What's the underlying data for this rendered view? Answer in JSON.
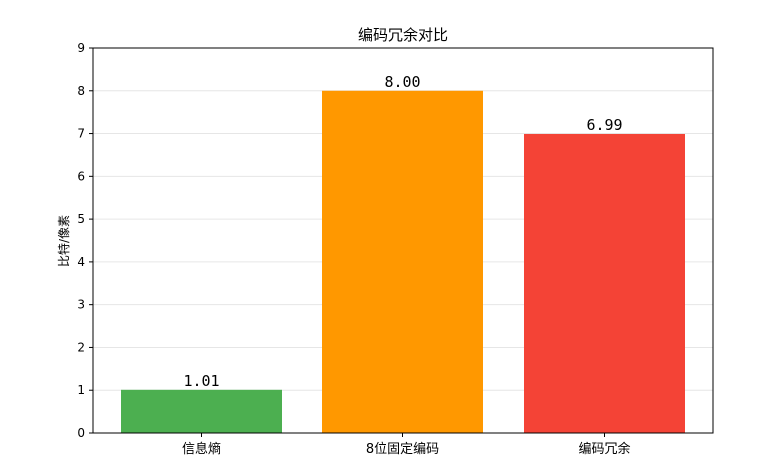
{
  "chart_data": {
    "type": "bar",
    "title": "编码冗余对比",
    "xlabel": "",
    "ylabel": "比特/像素",
    "categories": [
      "信息熵",
      "8位固定编码",
      "编码冗余"
    ],
    "values": [
      1.01,
      8.0,
      6.99
    ],
    "data_labels": [
      "1.01",
      "8.00",
      "6.99"
    ],
    "colors": [
      "#4caf50",
      "#ff9800",
      "#f44336"
    ],
    "ylim": [
      0,
      9
    ],
    "yticks": [
      0,
      1,
      2,
      3,
      4,
      5,
      6,
      7,
      8,
      9
    ],
    "grid": "horizontal",
    "legend": "none"
  }
}
